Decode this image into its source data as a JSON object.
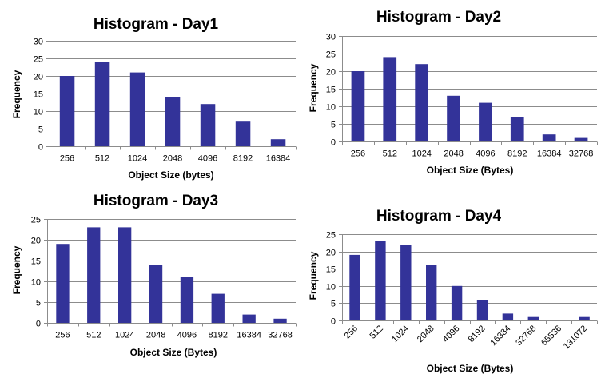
{
  "chart_data": [
    {
      "type": "bar",
      "title": "Histogram - Day1",
      "xlabel": "Object Size (bytes)",
      "ylabel": "Frequency",
      "categories": [
        "256",
        "512",
        "1024",
        "2048",
        "4096",
        "8192",
        "16384"
      ],
      "values": [
        20,
        24,
        21,
        14,
        12,
        7,
        2
      ],
      "ylim": [
        0,
        30
      ],
      "yticks": [
        0,
        5,
        10,
        15,
        20,
        25,
        30
      ],
      "grid": true,
      "legend": "none",
      "bar_color": "#333399",
      "rotated_xticks": false
    },
    {
      "type": "bar",
      "title": "Histogram - Day2",
      "xlabel": "Object Size (Bytes)",
      "ylabel": "Frequency",
      "categories": [
        "256",
        "512",
        "1024",
        "2048",
        "4096",
        "8192",
        "16384",
        "32768"
      ],
      "values": [
        20,
        24,
        22,
        13,
        11,
        7,
        2,
        1
      ],
      "ylim": [
        0,
        30
      ],
      "yticks": [
        0,
        5,
        10,
        15,
        20,
        25,
        30
      ],
      "grid": true,
      "legend": "none",
      "bar_color": "#333399",
      "rotated_xticks": false
    },
    {
      "type": "bar",
      "title": "Histogram - Day3",
      "xlabel": "Object Size (Bytes)",
      "ylabel": "Frequency",
      "categories": [
        "256",
        "512",
        "1024",
        "2048",
        "4096",
        "8192",
        "16384",
        "32768"
      ],
      "values": [
        19,
        23,
        23,
        14,
        11,
        7,
        2,
        1
      ],
      "ylim": [
        0,
        25
      ],
      "yticks": [
        0,
        5,
        10,
        15,
        20,
        25
      ],
      "grid": true,
      "legend": "none",
      "bar_color": "#333399",
      "rotated_xticks": false
    },
    {
      "type": "bar",
      "title": "Histogram - Day4",
      "xlabel": "Object Size (Bytes)",
      "ylabel": "Frequency",
      "categories": [
        "256",
        "512",
        "1024",
        "2048",
        "4096",
        "8192",
        "16384",
        "32768",
        "65536",
        "131072"
      ],
      "values": [
        19,
        23,
        22,
        16,
        10,
        6,
        2,
        1,
        0,
        1
      ],
      "ylim": [
        0,
        25
      ],
      "yticks": [
        0,
        5,
        10,
        15,
        20,
        25
      ],
      "grid": true,
      "legend": "none",
      "bar_color": "#333399",
      "rotated_xticks": true
    }
  ]
}
